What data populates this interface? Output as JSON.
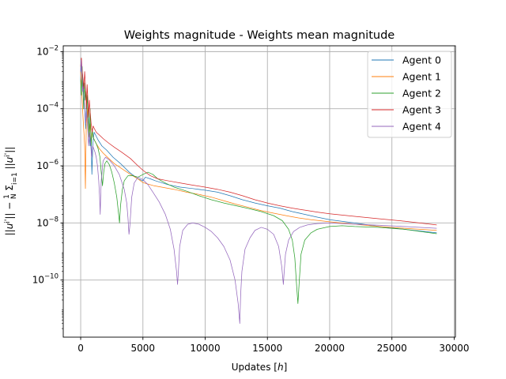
{
  "chart_data": {
    "type": "line",
    "title": "Weights magnitude - Weights mean magnitude",
    "xlabel": "Updates [h]",
    "ylabel": "||ui'|| − 1/N Σ_{i=1} ||ui'||",
    "y_scale": "log",
    "xlim": [
      -1400,
      30100
    ],
    "ylim": [
      1e-12,
      0.016
    ],
    "x_ticks": [
      0,
      5000,
      10000,
      15000,
      20000,
      25000,
      30000
    ],
    "y_tick_exponents": [
      -2,
      -4,
      -6,
      -8,
      -10
    ],
    "grid": true,
    "legend_position": "top-right",
    "series": [
      {
        "name": "Agent 0",
        "color": "#1f77b4",
        "x": [
          0,
          60,
          120,
          200,
          260,
          320,
          400,
          470,
          540,
          600,
          680,
          760,
          840,
          900,
          980,
          1080,
          1200,
          1400,
          1700,
          2100,
          2600,
          3200,
          3900,
          4600,
          5000,
          5200,
          5600,
          6000,
          7000,
          8000,
          9000,
          10000,
          11000,
          12000,
          13000,
          14000,
          15000,
          16000,
          17000,
          18000,
          19000,
          20000,
          22000,
          24000,
          26000,
          28600
        ],
        "y": [
          0.001,
          0.004,
          0.002,
          0.0008,
          0.0003,
          0.0001,
          2e-05,
          0.0002,
          5e-05,
          0.0001,
          2e-05,
          5e-06,
          1e-05,
          5e-07,
          6e-06,
          1.5e-05,
          1.2e-05,
          8e-06,
          5e-06,
          3.5e-06,
          2e-06,
          1.2e-06,
          6e-07,
          3.5e-07,
          3e-07,
          4e-07,
          3.5e-07,
          3e-07,
          2.2e-07,
          1.8e-07,
          1.6e-07,
          1.4e-07,
          1.2e-07,
          9e-08,
          6.5e-08,
          5e-08,
          4e-08,
          3.3e-08,
          2.5e-08,
          2e-08,
          1.6e-08,
          1.3e-08,
          1e-08,
          7.5e-09,
          6e-09,
          4.5e-09
        ]
      },
      {
        "name": "Agent 1",
        "color": "#ff7f0e",
        "x": [
          0,
          60,
          120,
          200,
          260,
          320,
          380,
          450,
          520,
          600,
          680,
          760,
          840,
          920,
          1000,
          1100,
          1250,
          1500,
          1800,
          2200,
          2700,
          3300,
          4000,
          4600,
          5000,
          5400,
          5900,
          6500,
          7500,
          8500,
          9500,
          10500,
          11500,
          12500,
          13500,
          14500,
          15500,
          16500,
          17500,
          18500,
          20000,
          22000,
          24000,
          26000,
          28600
        ],
        "y": [
          0.002,
          0.0006,
          0.0002,
          4e-05,
          1.5e-05,
          5e-06,
          1.6e-07,
          3e-05,
          0.0001,
          3e-05,
          1e-05,
          3e-05,
          8e-06,
          1.5e-05,
          1e-05,
          8e-06,
          6e-06,
          4e-06,
          2.8e-06,
          1.9e-06,
          1.2e-06,
          8e-07,
          5e-07,
          3.5e-07,
          2.6e-07,
          2.3e-07,
          2e-07,
          1.8e-07,
          1.5e-07,
          1.2e-07,
          1e-07,
          8e-08,
          6e-08,
          4.5e-08,
          3.5e-08,
          2.7e-08,
          2.2e-08,
          1.8e-08,
          1.5e-08,
          1.3e-08,
          1.1e-08,
          9e-09,
          7.5e-09,
          6.5e-09,
          5.5e-09
        ]
      },
      {
        "name": "Agent 2",
        "color": "#2ca02c",
        "x": [
          0,
          60,
          120,
          180,
          240,
          300,
          360,
          420,
          480,
          540,
          600,
          680,
          760,
          840,
          920,
          1000,
          1100,
          1250,
          1400,
          1550,
          1650,
          1750,
          1850,
          1950,
          2100,
          2300,
          2500,
          2700,
          2900,
          3050,
          3120,
          3200,
          3350,
          3500,
          3800,
          4200,
          4600,
          5000,
          5400,
          5800,
          6200,
          6800,
          7500,
          8500,
          9500,
          10500,
          11500,
          12500,
          13500,
          14500,
          15500,
          16200,
          16700,
          17000,
          17200,
          17350,
          17450,
          17550,
          17700,
          18000,
          18500,
          19000,
          20000,
          21000,
          22000,
          24000,
          26000,
          28600
        ],
        "y": [
          0.001,
          0.0003,
          0.003,
          0.0006,
          0.0001,
          0.0008,
          0.0002,
          0.0004,
          0.0001,
          0.0003,
          5e-05,
          1e-05,
          0.0001,
          5e-06,
          2e-05,
          1e-05,
          8e-06,
          6e-06,
          4e-06,
          2e-06,
          6e-07,
          2e-07,
          6e-07,
          1.2e-06,
          1.5e-06,
          1.1e-06,
          6e-07,
          2.5e-07,
          8e-08,
          2e-08,
          1e-08,
          4e-08,
          1.5e-07,
          3e-07,
          4.5e-07,
          4.5e-07,
          4e-07,
          5e-07,
          6e-07,
          5e-07,
          3.5e-07,
          2.5e-07,
          1.8e-07,
          1.3e-07,
          9e-08,
          6.5e-08,
          5e-08,
          4e-08,
          3.2e-08,
          2.5e-08,
          1.8e-08,
          1.2e-08,
          6e-09,
          2.5e-09,
          6e-10,
          6e-11,
          1.5e-11,
          8e-11,
          8e-10,
          2.5e-09,
          4.5e-09,
          6e-09,
          7.5e-09,
          8e-09,
          7.5e-09,
          7e-09,
          6e-09,
          4.2e-09
        ]
      },
      {
        "name": "Agent 3",
        "color": "#d62728",
        "x": [
          0,
          60,
          120,
          200,
          260,
          320,
          400,
          460,
          520,
          580,
          640,
          700,
          760,
          840,
          920,
          1000,
          1100,
          1250,
          1500,
          1800,
          2200,
          2700,
          3300,
          4000,
          4600,
          5000,
          5600,
          6200,
          7000,
          8000,
          9000,
          10000,
          11000,
          12000,
          13000,
          14000,
          15000,
          16000,
          17000,
          18000,
          19000,
          20000,
          22000,
          24000,
          26000,
          28600
        ],
        "y": [
          0.003,
          0.006,
          0.002,
          0.001,
          0.0005,
          0.002,
          0.0005,
          0.0001,
          0.0007,
          0.0002,
          5e-05,
          0.0002,
          8e-05,
          3e-05,
          1.5e-05,
          2.5e-05,
          2e-05,
          1.5e-05,
          1.2e-05,
          9e-06,
          6.5e-06,
          4.5e-06,
          3e-06,
          1.8e-06,
          1e-06,
          7e-07,
          4.5e-07,
          3.5e-07,
          3e-07,
          2.5e-07,
          2.1e-07,
          1.8e-07,
          1.5e-07,
          1.2e-07,
          9e-08,
          6.5e-08,
          5e-08,
          4e-08,
          3.3e-08,
          2.8e-08,
          2.4e-08,
          2.1e-08,
          1.7e-08,
          1.4e-08,
          1.15e-08,
          8.5e-09
        ]
      },
      {
        "name": "Agent 4",
        "color": "#9467bd",
        "x": [
          0,
          40,
          80,
          120,
          160,
          200,
          260,
          320,
          400,
          480,
          560,
          640,
          720,
          800,
          880,
          960,
          1050,
          1150,
          1250,
          1350,
          1450,
          1520,
          1570,
          1600,
          1650,
          1800,
          2000,
          2300,
          2700,
          3100,
          3500,
          3700,
          3800,
          3880,
          3950,
          4100,
          4300,
          4600,
          5000,
          5400,
          5800,
          6300,
          6800,
          7200,
          7500,
          7700,
          7780,
          7850,
          7950,
          8200,
          8600,
          9000,
          9500,
          10000,
          10500,
          11000,
          11500,
          12000,
          12400,
          12650,
          12780,
          12850,
          12950,
          13200,
          13600,
          14000,
          14500,
          15000,
          15500,
          15900,
          16150,
          16280,
          16350,
          16450,
          16700,
          17100,
          17600,
          18200,
          19000,
          20000,
          21000,
          22000,
          24000,
          26000,
          28600
        ],
        "y": [
          0.002,
          0.005,
          0.003,
          0.001,
          0.0004,
          0.0006,
          0.0003,
          0.0001,
          3e-05,
          8e-05,
          2e-05,
          5e-06,
          1.5e-05,
          6e-06,
          2e-06,
          5e-06,
          4e-06,
          3e-06,
          2e-06,
          1e-06,
          3e-07,
          8e-08,
          2e-08,
          7e-08,
          3e-07,
          1.5e-06,
          2e-06,
          1.6e-06,
          1e-06,
          5e-07,
          1.5e-07,
          5e-08,
          1.5e-08,
          4e-09,
          8e-09,
          8e-08,
          2.5e-07,
          4e-07,
          3.3e-07,
          2.2e-07,
          1.2e-07,
          5.5e-08,
          2e-08,
          6e-09,
          1.2e-09,
          2e-10,
          7e-11,
          2e-10,
          1.5e-09,
          5.5e-09,
          9e-09,
          1e-08,
          9e-09,
          7e-09,
          5e-09,
          3e-09,
          1.5e-09,
          5e-10,
          1e-10,
          1.5e-11,
          3e-12,
          3e-11,
          2e-10,
          1.2e-09,
          3e-09,
          5.5e-09,
          7e-09,
          6e-09,
          4e-09,
          1.5e-09,
          3e-10,
          7e-11,
          2e-10,
          8e-10,
          2.5e-09,
          5e-09,
          7e-09,
          8.5e-09,
          9.5e-09,
          1e-08,
          9.5e-09,
          9e-09,
          8.3e-09,
          7.5e-09,
          6.5e-09
        ]
      }
    ]
  }
}
